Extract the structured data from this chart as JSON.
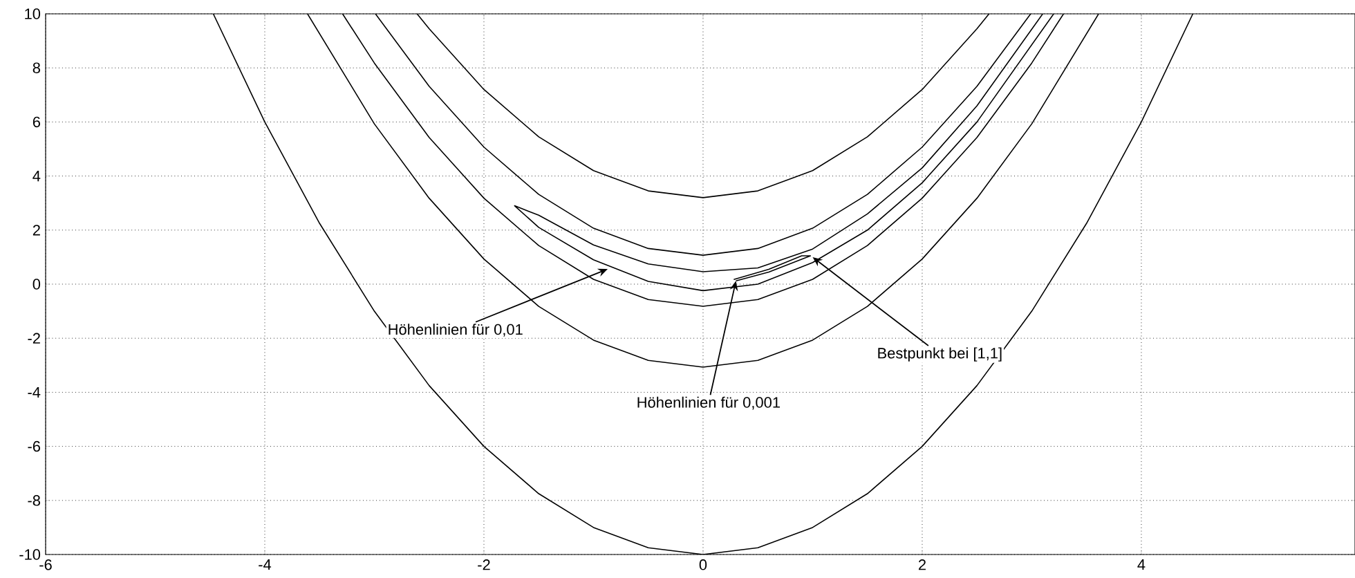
{
  "chart_data": {
    "type": "line",
    "xlim": [
      -6,
      5.95
    ],
    "ylim": [
      -10,
      10
    ],
    "xticks": [
      -6,
      -4,
      -2,
      0,
      2,
      4
    ],
    "yticks": [
      -10,
      -8,
      -6,
      -4,
      -2,
      0,
      2,
      4,
      6,
      8,
      10
    ],
    "grid": true,
    "marker": "none",
    "line_style": "solid",
    "series": [
      {
        "color": "#000000",
        "x": [
          -2.61,
          -2.5,
          -2,
          -1.5,
          -1,
          -0.5,
          0,
          0.5,
          1,
          1.5,
          2,
          2.5,
          2.61
        ],
        "values": [
          10,
          9.45,
          7.2,
          5.45,
          4.2,
          3.45,
          3.2,
          3.45,
          4.2,
          5.45,
          7.2,
          9.45,
          10
        ]
      },
      {
        "color": "#000000",
        "x": [
          -2.99,
          -2.5,
          -2,
          -1.5,
          -1,
          -0.5,
          0,
          0.5,
          1,
          1.5,
          2,
          2.5,
          2.99
        ],
        "values": [
          10,
          7.32,
          5.07,
          3.32,
          2.07,
          1.32,
          1.07,
          1.32,
          2.07,
          3.32,
          5.07,
          7.32,
          10
        ]
      },
      {
        "color": "#000000",
        "x": [
          3.1,
          2.5,
          2,
          1.5,
          1,
          0.5,
          0,
          -0.5,
          -1,
          -1.5,
          -1.72,
          -1.5,
          -1,
          -0.5,
          0,
          0.5,
          1,
          1.5,
          2,
          2.5,
          3.2
        ],
        "values": [
          10,
          6.6,
          4.3,
          2.6,
          1.3,
          0.6,
          0.46,
          0.75,
          1.45,
          2.55,
          2.9,
          2.1,
          0.9,
          0.1,
          -0.24,
          0.0,
          0.8,
          2.0,
          3.75,
          6.0,
          10
        ]
      },
      {
        "color": "#000000",
        "x": [
          -3.29,
          -3,
          -2.5,
          -2,
          -1.5,
          -1,
          -0.5,
          0,
          0.5,
          1,
          1.5,
          2,
          2.5,
          3,
          3.29
        ],
        "values": [
          10,
          8.18,
          5.43,
          3.18,
          1.43,
          0.18,
          -0.57,
          -0.82,
          -0.57,
          0.18,
          1.43,
          3.18,
          5.43,
          8.18,
          10
        ]
      },
      {
        "color": "#000000",
        "x": [
          -3.61,
          -3,
          -2.5,
          -2,
          -1.5,
          -1,
          -0.5,
          0,
          0.5,
          1,
          1.5,
          2,
          2.5,
          3,
          3.61
        ],
        "values": [
          10,
          5.93,
          3.18,
          0.93,
          -0.82,
          -2.07,
          -2.82,
          -3.07,
          -2.82,
          -2.07,
          -0.82,
          0.93,
          3.18,
          5.93,
          10
        ]
      },
      {
        "color": "#000000",
        "x": [
          -4.47,
          -4,
          -3.5,
          -3,
          -2.5,
          -2,
          -1.5,
          -1,
          -0.5,
          0,
          0.5,
          1,
          1.5,
          2,
          2.5,
          3,
          3.5,
          4,
          4.47
        ],
        "values": [
          10,
          6,
          2.25,
          -1,
          -3.75,
          -6,
          -7.75,
          -9,
          -9.75,
          -10,
          -9.75,
          -9,
          -7.75,
          -6,
          -3.75,
          -1,
          2.25,
          6,
          10
        ]
      },
      {
        "color": "#000000",
        "x": [
          0.3,
          0.6,
          0.98,
          0.9,
          0.6,
          0.28
        ],
        "values": [
          0.12,
          0.45,
          1.05,
          1.05,
          0.55,
          0.17
        ]
      }
    ],
    "annotations": [
      {
        "text": "Höhenlinien für 0,01",
        "x": -0.87,
        "y": 0.56
      },
      {
        "text": "Höhenlinien für 0,001",
        "x": 0.3,
        "y": 0.12
      },
      {
        "text": "Bestpunkt bei [1,1]",
        "x": 1.0,
        "y": 1.0
      }
    ]
  }
}
